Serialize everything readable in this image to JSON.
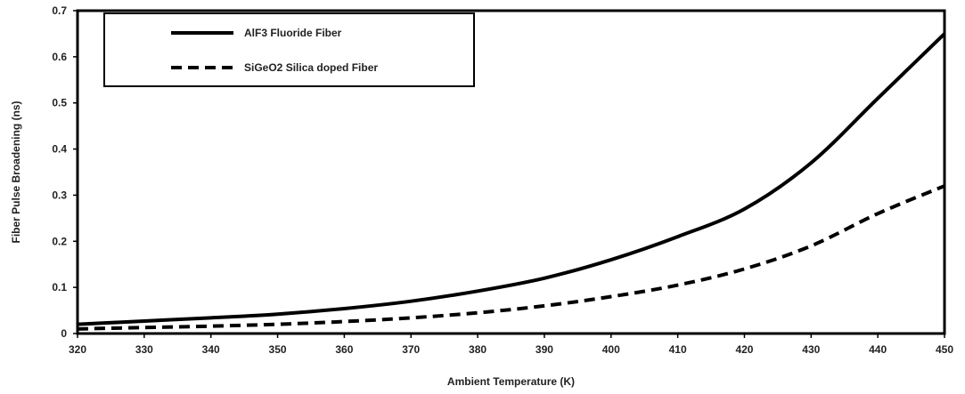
{
  "chart_data": {
    "type": "line",
    "title": "",
    "xlabel": "Ambient Temperature (K)",
    "ylabel": "Fiber Pulse Broadening (ns)",
    "xlim": [
      320,
      450
    ],
    "ylim": [
      0,
      0.7
    ],
    "x_ticks": [
      "320",
      "330",
      "340",
      "350",
      "360",
      "370",
      "380",
      "390",
      "400",
      "410",
      "420",
      "430",
      "440",
      "450"
    ],
    "y_ticks": [
      "0",
      "0.1",
      "0.2",
      "0.3",
      "0.4",
      "0.5",
      "0.6",
      "0.7"
    ],
    "grid": false,
    "legend_position": "top-left",
    "x": [
      320,
      330,
      340,
      350,
      360,
      370,
      380,
      390,
      400,
      410,
      420,
      430,
      440,
      450
    ],
    "series": [
      {
        "name": "AlF3 Fluoride Fiber",
        "style": "solid",
        "color": "#000000",
        "values": [
          0.02,
          0.027,
          0.034,
          0.042,
          0.054,
          0.07,
          0.092,
          0.12,
          0.16,
          0.21,
          0.27,
          0.37,
          0.51,
          0.65
        ]
      },
      {
        "name": "SiGeO2 Silica doped Fiber",
        "style": "dashed",
        "color": "#000000",
        "values": [
          0.01,
          0.013,
          0.016,
          0.02,
          0.026,
          0.034,
          0.045,
          0.06,
          0.08,
          0.105,
          0.14,
          0.19,
          0.26,
          0.32
        ]
      }
    ]
  }
}
